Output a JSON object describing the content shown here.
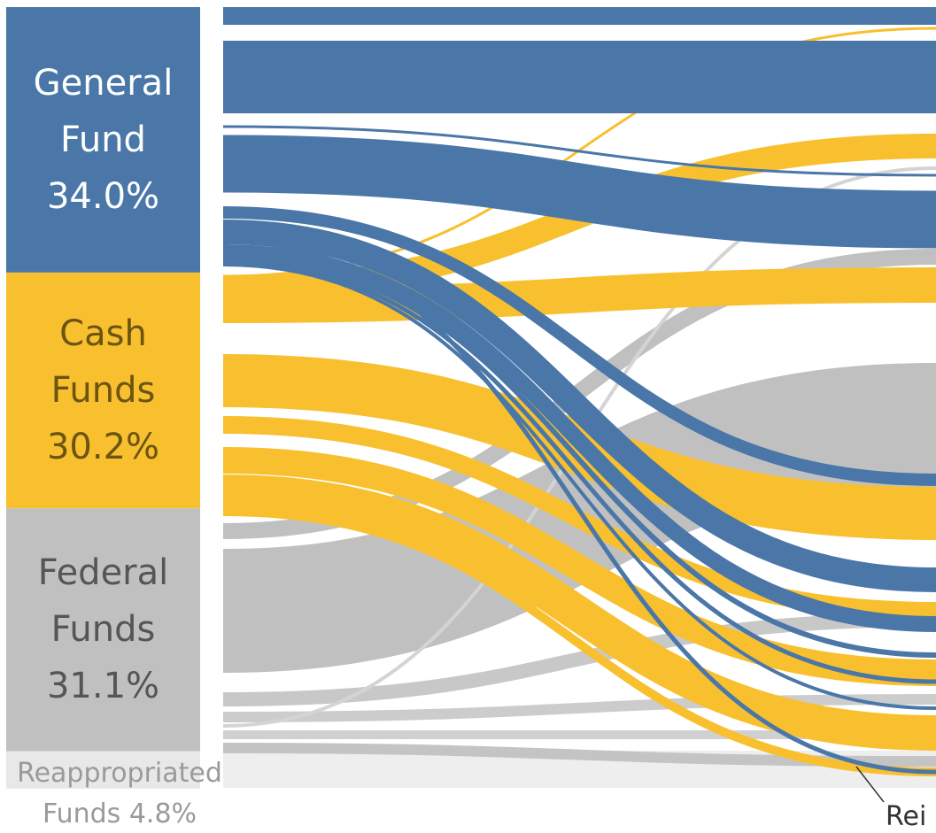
{
  "nodes": [
    {
      "name": "General Fund",
      "value": 34.0,
      "value_label": "34.0%",
      "color": "#4a77a8",
      "text_color": "#ffffff"
    },
    {
      "name": "Cash Funds",
      "value": 30.2,
      "value_label": "30.2%",
      "color": "#f8c02e",
      "text_color": "#6b5410"
    },
    {
      "name": "Federal Funds",
      "value": 31.1,
      "value_label": "31.1%",
      "color": "#c0c0c0",
      "text_color": "#555555"
    },
    {
      "name": "Reappropriated Funds",
      "value": 4.8,
      "value_label": "4.8%",
      "color": "#e8e8e8",
      "text_color": "#9a9a9a"
    }
  ],
  "target_label": "Rei"
}
